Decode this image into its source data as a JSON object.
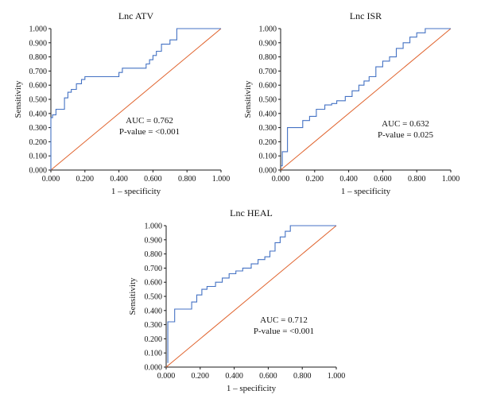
{
  "chart_data": [
    {
      "type": "line",
      "title": "Lnc ATV",
      "xlabel": "1 – specificity",
      "ylabel": "Sensitivity",
      "xlim": [
        0,
        1
      ],
      "ylim": [
        0,
        1
      ],
      "x_ticks": [
        "0.000",
        "0.200",
        "0.400",
        "0.600",
        "0.800",
        "1.000"
      ],
      "y_ticks": [
        "0.000",
        "0.100",
        "0.200",
        "0.300",
        "0.400",
        "0.500",
        "0.600",
        "0.700",
        "0.800",
        "0.900",
        "1.000"
      ],
      "auc_text": "AUC = 0.762",
      "pvalue_text": "P-value = <0.001",
      "series": [
        {
          "role": "roc",
          "color": "#4472C4",
          "x": [
            0.0,
            0.0,
            0.01,
            0.01,
            0.03,
            0.03,
            0.08,
            0.08,
            0.1,
            0.1,
            0.12,
            0.12,
            0.15,
            0.15,
            0.18,
            0.18,
            0.2,
            0.2,
            0.4,
            0.4,
            0.42,
            0.42,
            0.56,
            0.56,
            0.58,
            0.58,
            0.6,
            0.6,
            0.62,
            0.62,
            0.65,
            0.65,
            0.68,
            0.68,
            0.7,
            0.7,
            0.72,
            0.72,
            0.74,
            0.74,
            1.0
          ],
          "y": [
            0.0,
            0.37,
            0.37,
            0.39,
            0.39,
            0.43,
            0.43,
            0.51,
            0.51,
            0.55,
            0.55,
            0.57,
            0.57,
            0.61,
            0.61,
            0.64,
            0.64,
            0.66,
            0.66,
            0.69,
            0.69,
            0.72,
            0.72,
            0.75,
            0.75,
            0.78,
            0.78,
            0.81,
            0.81,
            0.84,
            0.84,
            0.89,
            0.89,
            0.89,
            0.89,
            0.92,
            0.92,
            0.92,
            0.92,
            1.0,
            1.0
          ]
        },
        {
          "role": "reference",
          "color": "#E0632D",
          "x": [
            0,
            1
          ],
          "y": [
            0,
            1
          ]
        }
      ]
    },
    {
      "type": "line",
      "title": "Lnc ISR",
      "xlabel": "1 – specificity",
      "ylabel": "Sensitivity",
      "xlim": [
        0,
        1
      ],
      "ylim": [
        0,
        1
      ],
      "x_ticks": [
        "0.000",
        "0.200",
        "0.400",
        "0.600",
        "0.800",
        "1.000"
      ],
      "y_ticks": [
        "0.000",
        "0.100",
        "0.200",
        "0.300",
        "0.400",
        "0.500",
        "0.600",
        "0.700",
        "0.800",
        "0.900",
        "1.000"
      ],
      "auc_text": "AUC = 0.632",
      "pvalue_text": "P-value = 0.025",
      "series": [
        {
          "role": "roc",
          "color": "#4472C4",
          "x": [
            0.0,
            0.01,
            0.01,
            0.04,
            0.04,
            0.13,
            0.13,
            0.17,
            0.17,
            0.21,
            0.21,
            0.26,
            0.26,
            0.3,
            0.3,
            0.33,
            0.33,
            0.38,
            0.38,
            0.42,
            0.42,
            0.46,
            0.46,
            0.49,
            0.49,
            0.52,
            0.52,
            0.56,
            0.56,
            0.6,
            0.6,
            0.64,
            0.64,
            0.68,
            0.68,
            0.72,
            0.72,
            0.76,
            0.76,
            0.8,
            0.8,
            0.85,
            0.85,
            1.0
          ],
          "y": [
            0.03,
            0.03,
            0.13,
            0.13,
            0.3,
            0.3,
            0.35,
            0.35,
            0.38,
            0.38,
            0.43,
            0.43,
            0.46,
            0.46,
            0.47,
            0.47,
            0.49,
            0.49,
            0.52,
            0.52,
            0.56,
            0.56,
            0.6,
            0.6,
            0.63,
            0.63,
            0.66,
            0.66,
            0.73,
            0.73,
            0.77,
            0.77,
            0.8,
            0.8,
            0.86,
            0.86,
            0.9,
            0.9,
            0.94,
            0.94,
            0.97,
            0.97,
            1.0,
            1.0
          ]
        },
        {
          "role": "reference",
          "color": "#E0632D",
          "x": [
            0,
            1
          ],
          "y": [
            0,
            1
          ]
        }
      ]
    },
    {
      "type": "line",
      "title": "Lnc HEAL",
      "xlabel": "1 – specificity",
      "ylabel": "Sensitivity",
      "xlim": [
        0,
        1
      ],
      "ylim": [
        0,
        1
      ],
      "x_ticks": [
        "0.000",
        "0.200",
        "0.400",
        "0.600",
        "0.800",
        "1.000"
      ],
      "y_ticks": [
        "0.000",
        "0.100",
        "0.200",
        "0.300",
        "0.400",
        "0.500",
        "0.600",
        "0.700",
        "0.800",
        "0.900",
        "1.000"
      ],
      "auc_text": "AUC = 0.712",
      "pvalue_text": "P-value = <0.001",
      "series": [
        {
          "role": "roc",
          "color": "#4472C4",
          "x": [
            0.01,
            0.01,
            0.05,
            0.05,
            0.15,
            0.15,
            0.18,
            0.18,
            0.21,
            0.21,
            0.24,
            0.24,
            0.29,
            0.29,
            0.33,
            0.33,
            0.37,
            0.37,
            0.41,
            0.41,
            0.45,
            0.45,
            0.5,
            0.5,
            0.54,
            0.54,
            0.58,
            0.58,
            0.61,
            0.61,
            0.64,
            0.64,
            0.67,
            0.67,
            0.7,
            0.7,
            0.73,
            0.73,
            1.0
          ],
          "y": [
            0.03,
            0.32,
            0.32,
            0.41,
            0.41,
            0.46,
            0.46,
            0.51,
            0.51,
            0.55,
            0.55,
            0.57,
            0.57,
            0.6,
            0.6,
            0.63,
            0.63,
            0.66,
            0.66,
            0.68,
            0.68,
            0.7,
            0.7,
            0.73,
            0.73,
            0.76,
            0.76,
            0.78,
            0.78,
            0.82,
            0.82,
            0.88,
            0.88,
            0.92,
            0.92,
            0.96,
            0.96,
            1.0,
            1.0
          ]
        },
        {
          "role": "reference",
          "color": "#E0632D",
          "x": [
            0,
            1
          ],
          "y": [
            0,
            1
          ]
        }
      ]
    }
  ]
}
